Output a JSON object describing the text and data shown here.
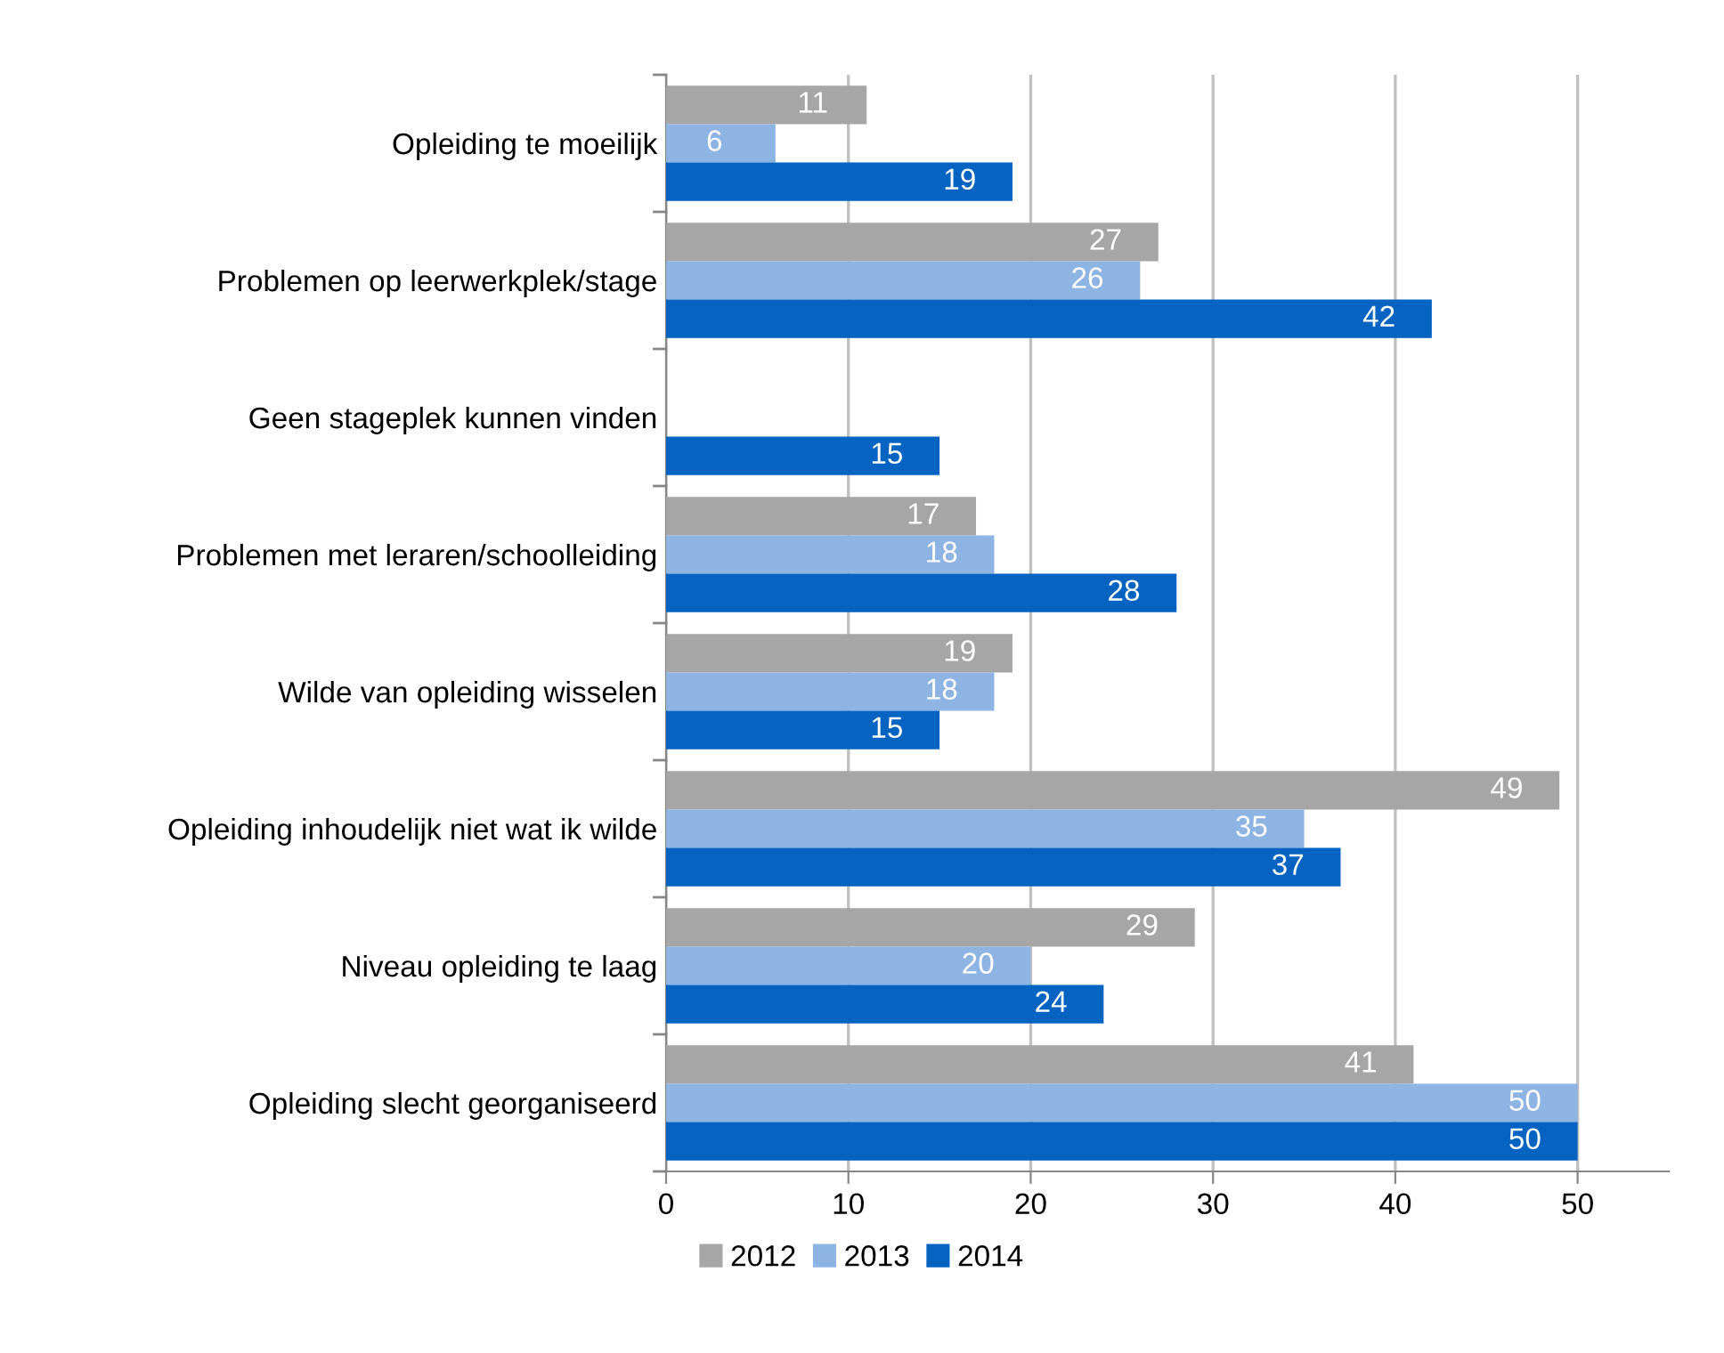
{
  "chart_data": {
    "type": "bar",
    "orientation": "horizontal",
    "categories": [
      "Opleiding te moeilijk",
      "Problemen op leerwerkplek/stage",
      "Geen stageplek kunnen vinden",
      "Problemen met leraren/schoolleiding",
      "Wilde van opleiding wisselen",
      "Opleiding inhoudelijk niet wat ik wilde",
      "Niveau opleiding te laag",
      "Opleiding slecht georganiseerd"
    ],
    "series": [
      {
        "name": "2012",
        "color": "#a6a6a6",
        "values": [
          11,
          27,
          null,
          17,
          19,
          49,
          29,
          41
        ]
      },
      {
        "name": "2013",
        "color": "#8db4e2",
        "values": [
          6,
          26,
          null,
          18,
          18,
          35,
          20,
          50
        ]
      },
      {
        "name": "2014",
        "color": "#0563c1",
        "values": [
          19,
          42,
          15,
          28,
          15,
          37,
          24,
          50
        ]
      }
    ],
    "xlim": [
      0,
      55
    ],
    "xticks": [
      0,
      10,
      20,
      30,
      40,
      50
    ],
    "grid": "x",
    "legend": "bottom",
    "data_labels": true
  }
}
